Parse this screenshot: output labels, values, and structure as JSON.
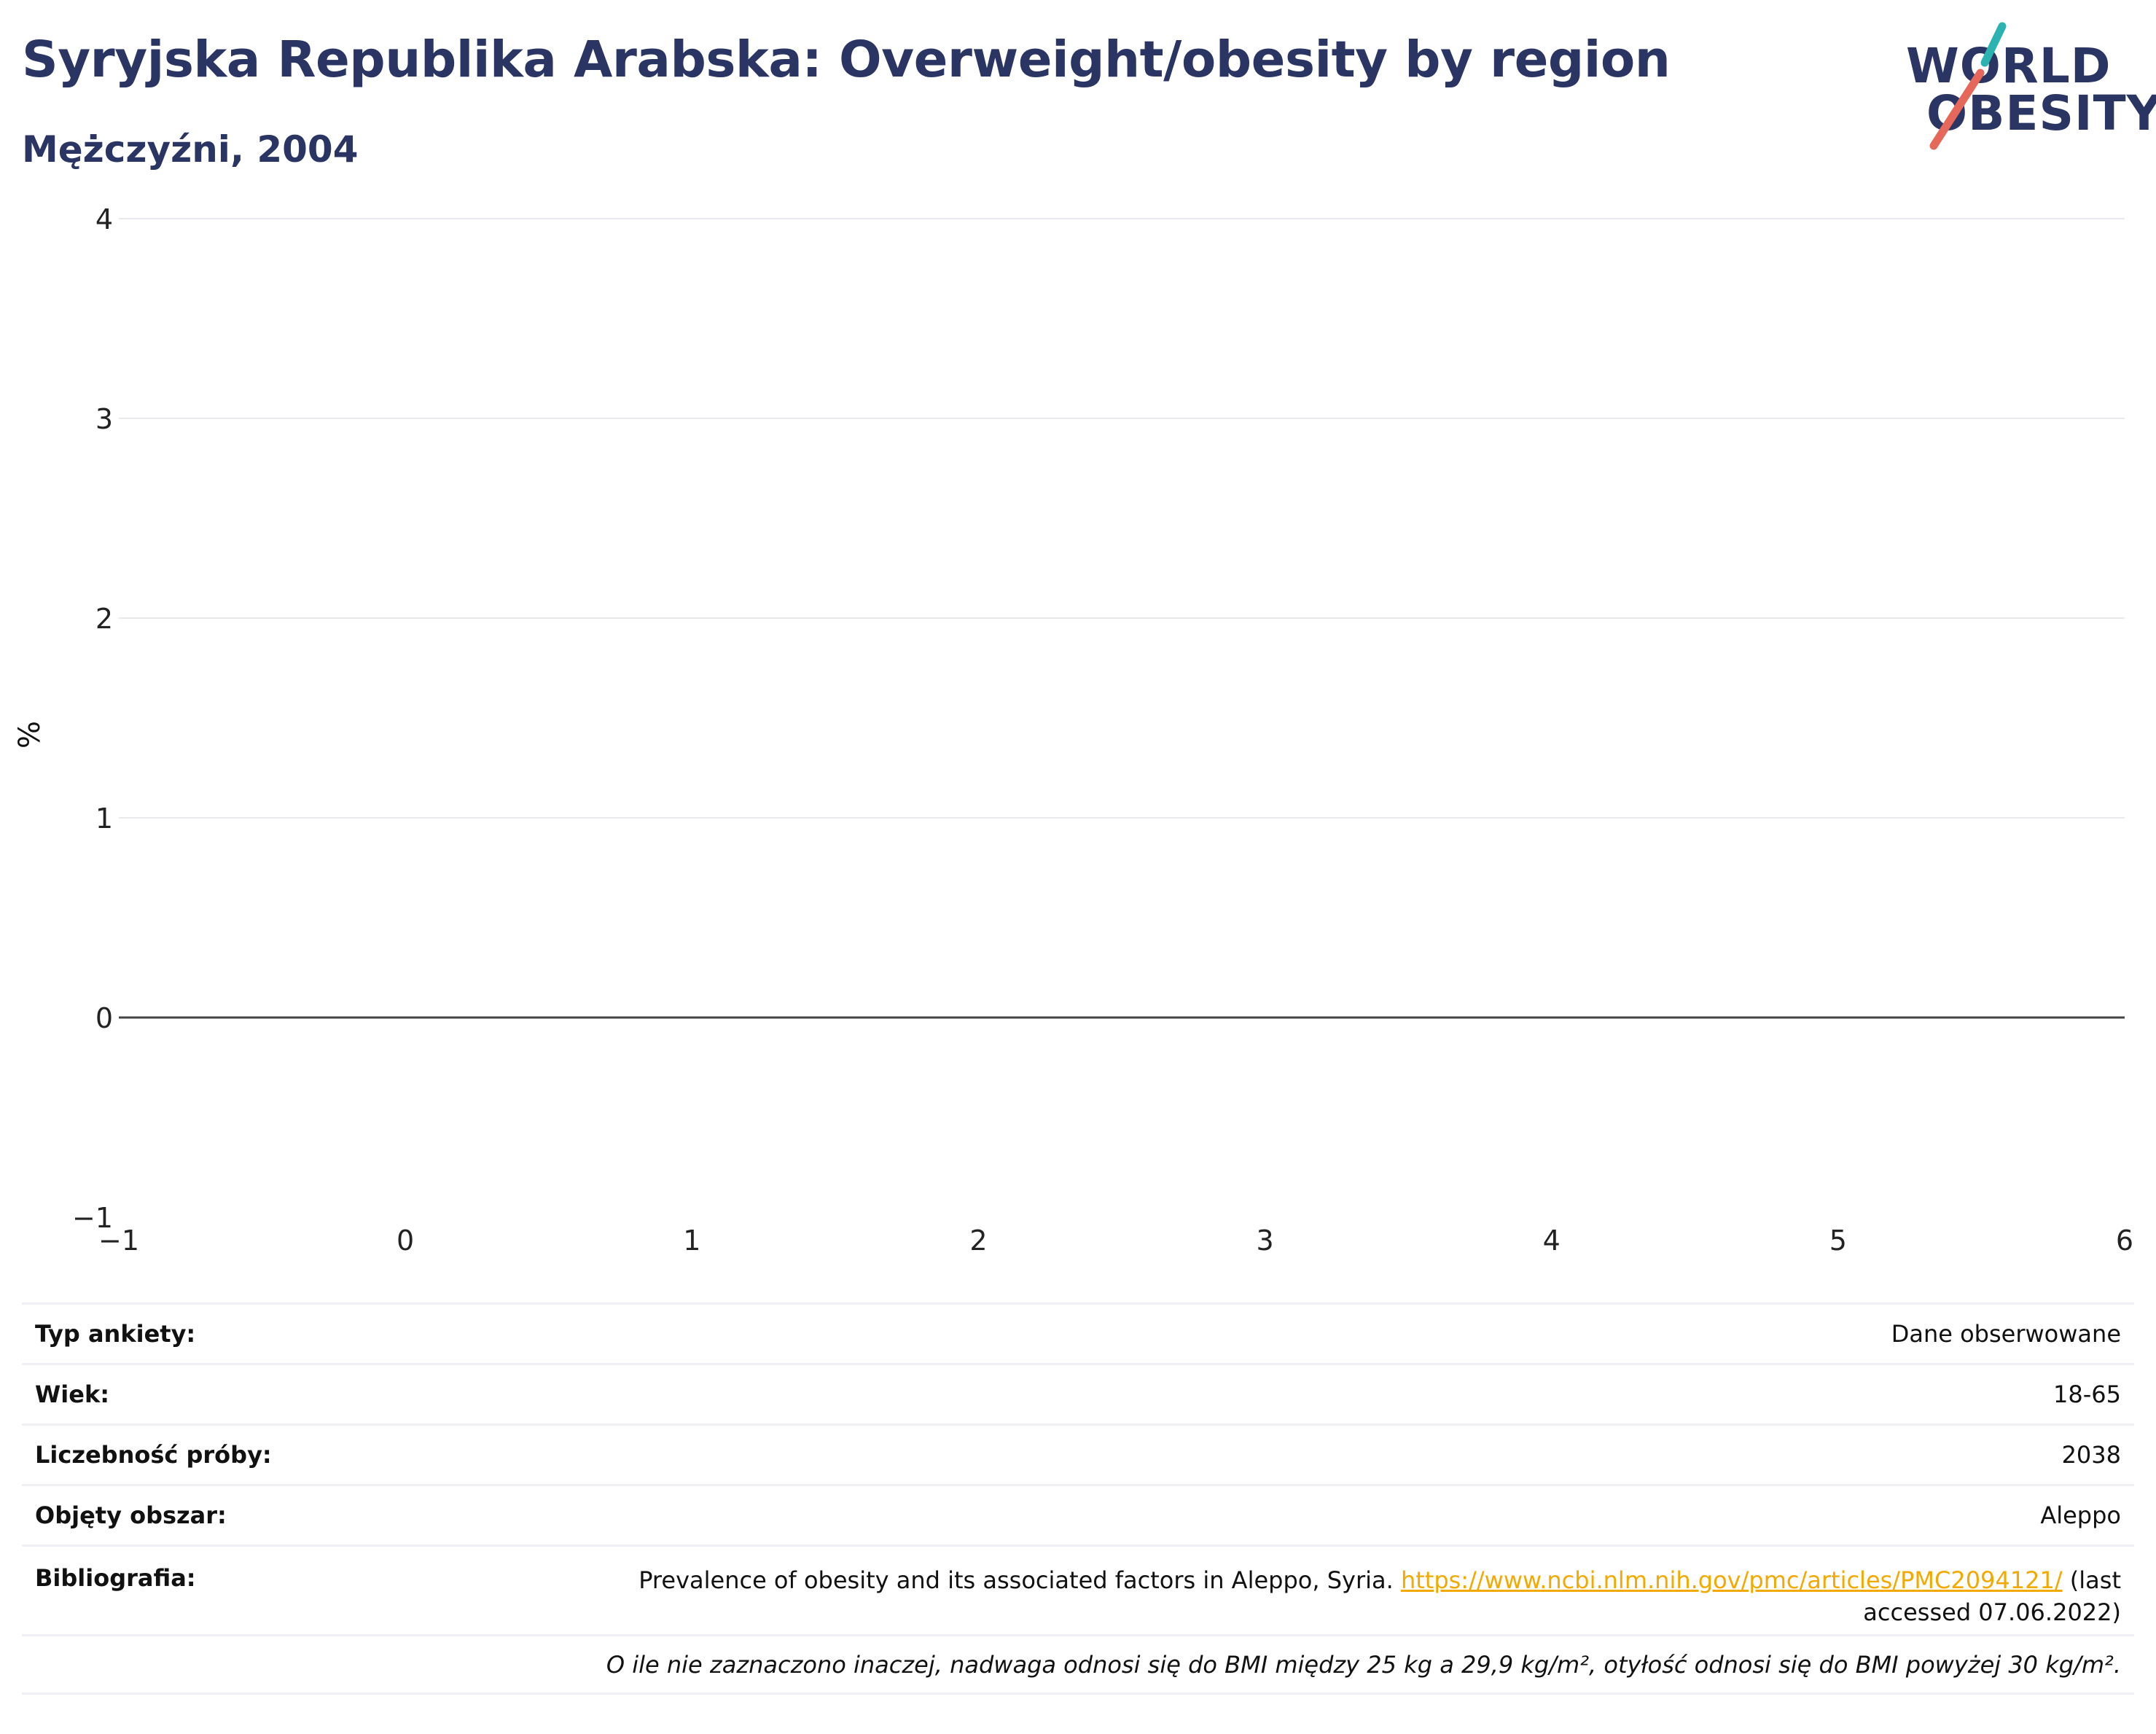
{
  "title": "Syryjska Republika Arabska: Overweight/obesity by region",
  "subtitle": "Mężczyźni, 2004",
  "logo": {
    "line1": "WORLD",
    "line2": "OBESITY",
    "colors": {
      "teal": "#2ab3b1",
      "coral": "#e5685a",
      "navy": "#2a3563"
    }
  },
  "chart_data": {
    "type": "bar",
    "series": [],
    "xlim": [
      -1,
      6
    ],
    "ylim": [
      -1,
      4
    ],
    "x_ticks": [
      "−1",
      "0",
      "1",
      "2",
      "3",
      "4",
      "5",
      "6"
    ],
    "y_ticks": [
      "−1",
      "0",
      "1",
      "2",
      "3",
      "4"
    ],
    "ylabel": "%",
    "grid": true
  },
  "info": {
    "survey_type_label": "Typ ankiety:",
    "survey_type_value": "Dane obserwowane",
    "age_label": "Wiek:",
    "age_value": "18-65",
    "sample_label": "Liczebność próby:",
    "sample_value": "2038",
    "area_label": "Objęty obszar:",
    "area_value": "Aleppo",
    "bib_label": "Bibliografia:",
    "bib_text": "Prevalence of obesity and its associated factors in Aleppo, Syria.",
    "bib_link": "https://www.ncbi.nlm.nih.gov/pmc/articles/PMC2094121/",
    "bib_suffix": "(last accessed 07.06.2022)",
    "note": "O ile nie zaznaczono inaczej, nadwaga odnosi się do BMI między 25 kg a 29,9 kg/m², otyłość odnosi się do BMI powyżej 30 kg/m²."
  }
}
